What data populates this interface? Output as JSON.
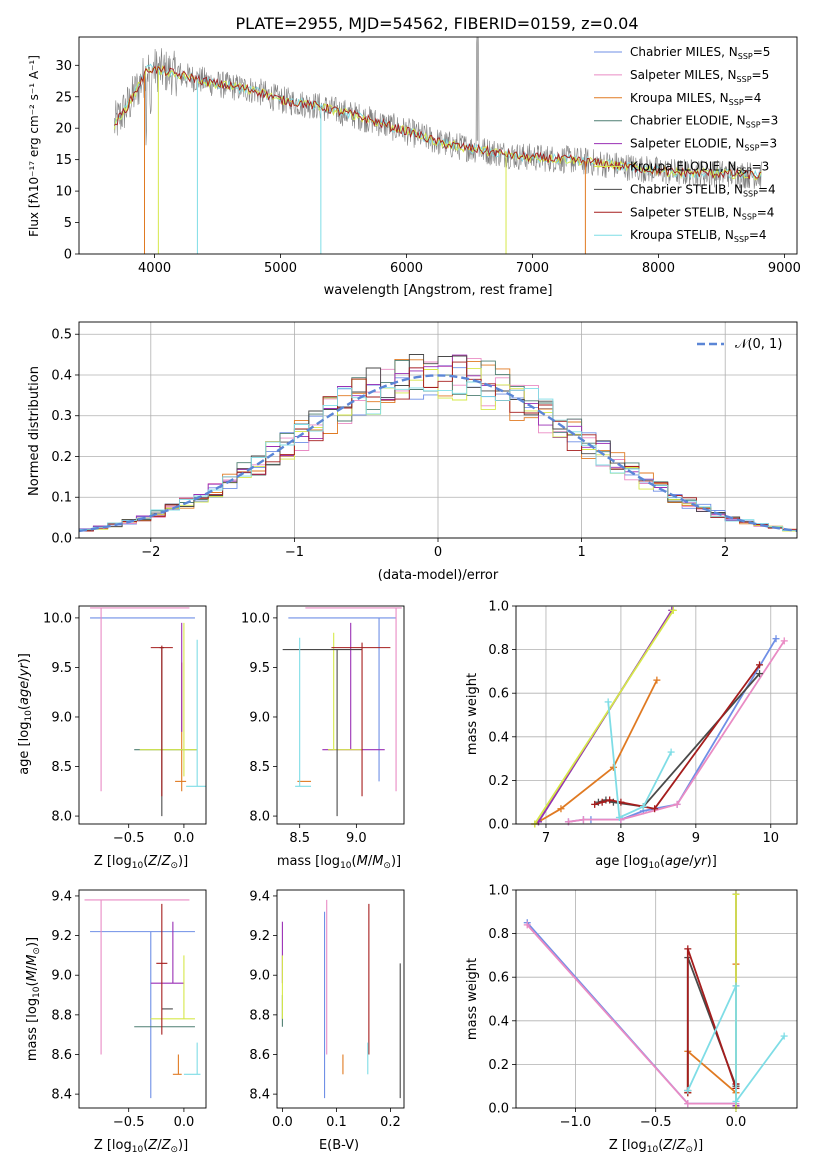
{
  "figure_title": "PLATE=2955, MJD=54562, FIBERID=0159, z=0.04",
  "colors": {
    "c1": "#6f8fe6",
    "c2": "#e98bc4",
    "c3": "#e07a22",
    "c4": "#4f7f72",
    "c5": "#9a2fb5",
    "c6": "#d6e84a",
    "c7": "#4a4a4a",
    "c8": "#a51d1d",
    "c9": "#7fdde6",
    "gauss": "#5b86d6",
    "data": "#808080"
  },
  "legend_spectrum": [
    {
      "model": "Chabrier MILES",
      "n": "5",
      "color": "#6f8fe6"
    },
    {
      "model": "Salpeter MILES",
      "n": "5",
      "color": "#e98bc4"
    },
    {
      "model": "Kroupa MILES",
      "n": "4",
      "color": "#e07a22"
    },
    {
      "model": "Chabrier ELODIE",
      "n": "3",
      "color": "#4f7f72"
    },
    {
      "model": "Salpeter ELODIE",
      "n": "3",
      "color": "#9a2fb5"
    },
    {
      "model": "Kroupa ELODIE",
      "n": "3",
      "color": "#d6e84a"
    },
    {
      "model": "Chabrier STELIB",
      "n": "4",
      "color": "#4a4a4a"
    },
    {
      "model": "Salpeter STELIB",
      "n": "4",
      "color": "#a51d1d"
    },
    {
      "model": "Kroupa STELIB",
      "n": "4",
      "color": "#7fdde6"
    }
  ],
  "legend_sub": "SSP",
  "legend_hist": "𝒩(0, 1)",
  "chart_data": [
    {
      "panel": "spectrum",
      "type": "line",
      "xlabel": "wavelength [Angstrom, rest frame]",
      "ylabel": "Flux [fλ10⁻¹⁷ erg cm⁻² s⁻¹ A⁻¹]",
      "xlim": [
        3400,
        9100
      ],
      "ylim": [
        0,
        34.5
      ],
      "xticks": [
        4000,
        5000,
        6000,
        7000,
        8000,
        9000
      ],
      "yticks": [
        0,
        5,
        10,
        15,
        20,
        25,
        30
      ],
      "grid": false,
      "legend": "top-right",
      "model_continuum": [
        [
          3680,
          20.5
        ],
        [
          3800,
          24
        ],
        [
          3950,
          29.5
        ],
        [
          4100,
          29
        ],
        [
          4300,
          28
        ],
        [
          4500,
          27
        ],
        [
          4800,
          26
        ],
        [
          5000,
          24.5
        ],
        [
          5300,
          23.5
        ],
        [
          5600,
          22
        ],
        [
          6000,
          19.5
        ],
        [
          6300,
          17.5
        ],
        [
          6600,
          16.5
        ],
        [
          6900,
          15.5
        ],
        [
          7300,
          15
        ],
        [
          7700,
          14
        ],
        [
          8100,
          13
        ],
        [
          8500,
          12.8
        ],
        [
          8800,
          12.5
        ]
      ]
    },
    {
      "panel": "residuals",
      "type": "histogram",
      "xlabel": "(data-model)/error",
      "ylabel": "Normed distribution",
      "xlim": [
        -2.5,
        2.5
      ],
      "ylim": [
        0,
        0.53
      ],
      "xticks": [
        -2,
        -1,
        0,
        1,
        2
      ],
      "xtick_labels": [
        "−2",
        "−1",
        "0",
        "1",
        "2"
      ],
      "yticks": [
        0,
        0.1,
        0.2,
        0.3,
        0.4,
        0.5
      ],
      "grid": true,
      "legend": "top-right",
      "bin_width": 0.1
    },
    {
      "panel": "age-vs-Z",
      "type": "scatter",
      "xlabel": "Z [log10(Z/Z☉)]",
      "ylabel": "age  [log10(age/yr)]",
      "xlim": [
        -0.95,
        0.2
      ],
      "ylim": [
        7.92,
        10.12
      ],
      "xticks": [
        -0.5,
        0.0
      ],
      "yticks": [
        8.0,
        8.5,
        9.0,
        9.5,
        10.0
      ],
      "grid": false,
      "bars": [
        {
          "c": 0,
          "x": -0.3,
          "y": 10.0,
          "x0": -0.85,
          "x1": 0.1,
          "y0": 10.0,
          "y1": 10.0
        },
        {
          "c": 1,
          "x": -0.75,
          "y": 10.1,
          "x0": -0.85,
          "x1": 0.05,
          "y0": 8.25,
          "y1": 10.1
        },
        {
          "c": 2,
          "x": -0.02,
          "y": 8.35,
          "x0": -0.08,
          "x1": 0.02,
          "y0": 8.25,
          "y1": 9.55
        },
        {
          "c": 3,
          "x": -0.2,
          "y": 8.67,
          "x0": -0.45,
          "x1": 0.12,
          "y0": 8.67,
          "y1": 8.67
        },
        {
          "c": 4,
          "x": -0.02,
          "y": 9.2,
          "x0": -0.02,
          "x1": -0.02,
          "y0": 8.85,
          "y1": 9.95
        },
        {
          "c": 5,
          "x": 0.0,
          "y": 8.67,
          "x0": -0.4,
          "x1": 0.12,
          "y0": 8.4,
          "y1": 9.95
        },
        {
          "c": 6,
          "x": -0.2,
          "y": 9.7,
          "x0": -0.22,
          "x1": -0.18,
          "y0": 8.0,
          "y1": 9.7
        },
        {
          "c": 7,
          "x": -0.2,
          "y": 9.7,
          "x0": -0.3,
          "x1": -0.1,
          "y0": 8.2,
          "y1": 9.72
        },
        {
          "c": 8,
          "x": 0.12,
          "y": 8.3,
          "x0": 0.02,
          "x1": 0.2,
          "y0": 8.3,
          "y1": 9.78
        }
      ]
    },
    {
      "panel": "age-vs-mass",
      "type": "scatter",
      "xlabel": "mass [log10(M/M☉)]",
      "ylabel": "",
      "xlim": [
        8.3,
        9.42
      ],
      "ylim": [
        7.92,
        10.12
      ],
      "xticks": [
        8.5,
        9.0
      ],
      "yticks": [
        8.0,
        8.5,
        9.0,
        9.5,
        10.0
      ],
      "grid": false,
      "bars": [
        {
          "c": 0,
          "x": 9.2,
          "y": 10.0,
          "x0": 8.4,
          "x1": 9.35,
          "y0": 8.35,
          "y1": 10.0
        },
        {
          "c": 1,
          "x": 9.35,
          "y": 10.1,
          "x0": 8.55,
          "x1": 9.4,
          "y0": 8.25,
          "y1": 10.1
        },
        {
          "c": 2,
          "x": 8.5,
          "y": 8.35,
          "x0": 8.48,
          "x1": 8.6,
          "y0": 8.35,
          "y1": 8.35
        },
        {
          "c": 3,
          "x": 8.75,
          "y": 8.67,
          "x0": 8.75,
          "x1": 8.8,
          "y0": 8.67,
          "y1": 8.67
        },
        {
          "c": 4,
          "x": 8.95,
          "y": 8.67,
          "x0": 8.7,
          "x1": 9.25,
          "y0": 8.67,
          "y1": 9.95
        },
        {
          "c": 5,
          "x": 8.8,
          "y": 8.67,
          "x0": 8.75,
          "x1": 9.05,
          "y0": 8.67,
          "y1": 9.85
        },
        {
          "c": 6,
          "x": 8.83,
          "y": 9.68,
          "x0": 8.35,
          "x1": 9.05,
          "y0": 8.0,
          "y1": 9.68
        },
        {
          "c": 7,
          "x": 9.05,
          "y": 9.7,
          "x0": 8.78,
          "x1": 9.3,
          "y0": 8.2,
          "y1": 9.75
        },
        {
          "c": 8,
          "x": 8.5,
          "y": 8.3,
          "x0": 8.46,
          "x1": 8.6,
          "y0": 8.3,
          "y1": 9.8
        }
      ]
    },
    {
      "panel": "weight-vs-age",
      "type": "line",
      "xlabel": "age  [log10(age/yr)]",
      "ylabel": "mass weight",
      "xlim": [
        6.6,
        10.35
      ],
      "ylim": [
        0,
        1.0
      ],
      "xticks": [
        7,
        8,
        9,
        10
      ],
      "yticks": [
        0.0,
        0.2,
        0.4,
        0.6,
        0.8,
        1.0
      ],
      "grid": true,
      "series": [
        {
          "c": 0,
          "x": [
            7.3,
            7.5,
            7.6,
            8.0,
            8.3,
            8.75,
            10.07
          ],
          "y": [
            0.01,
            0.02,
            0.02,
            0.02,
            0.06,
            0.09,
            0.85
          ]
        },
        {
          "c": 1,
          "x": [
            7.3,
            7.5,
            8.0,
            8.75,
            10.18
          ],
          "y": [
            0.01,
            0.02,
            0.02,
            0.09,
            0.84
          ]
        },
        {
          "c": 2,
          "x": [
            6.85,
            7.2,
            7.9,
            8.48
          ],
          "y": [
            0.0,
            0.07,
            0.26,
            0.66
          ]
        },
        {
          "c": 3,
          "x": [
            6.9,
            8.68
          ],
          "y": [
            0.01,
            0.98
          ]
        },
        {
          "c": 4,
          "x": [
            6.9,
            8.68
          ],
          "y": [
            0.01,
            0.98
          ]
        },
        {
          "c": 5,
          "x": [
            6.85,
            8.7
          ],
          "y": [
            0.0,
            0.98
          ]
        },
        {
          "c": 6,
          "x": [
            7.7,
            7.8,
            7.9,
            8.3,
            9.85
          ],
          "y": [
            0.1,
            0.11,
            0.1,
            0.08,
            0.69
          ]
        },
        {
          "c": 7,
          "x": [
            7.65,
            7.75,
            7.85,
            8.0,
            8.45,
            9.85
          ],
          "y": [
            0.09,
            0.1,
            0.11,
            0.1,
            0.07,
            0.73
          ]
        },
        {
          "c": 8,
          "x": [
            7.83,
            7.98,
            8.3,
            8.67
          ],
          "y": [
            0.56,
            0.03,
            0.08,
            0.33
          ]
        }
      ]
    },
    {
      "panel": "mass-vs-Z",
      "type": "scatter",
      "xlabel": "Z [log10(Z/Z☉)]",
      "ylabel": "mass [log10(M/M☉)]",
      "xlim": [
        -0.95,
        0.2
      ],
      "ylim": [
        8.33,
        9.43
      ],
      "xticks": [
        -0.5,
        0.0
      ],
      "yticks": [
        8.4,
        8.6,
        8.8,
        9.0,
        9.2,
        9.4
      ],
      "grid": false,
      "bars": [
        {
          "c": 0,
          "x": -0.3,
          "y": 9.22,
          "x0": -0.85,
          "x1": 0.1,
          "y0": 8.38,
          "y1": 9.22
        },
        {
          "c": 1,
          "x": -0.75,
          "y": 9.38,
          "x0": -0.9,
          "x1": 0.05,
          "y0": 8.6,
          "y1": 9.38
        },
        {
          "c": 2,
          "x": -0.05,
          "y": 8.5,
          "x0": -0.1,
          "x1": -0.02,
          "y0": 8.5,
          "y1": 8.6
        },
        {
          "c": 3,
          "x": -0.2,
          "y": 8.74,
          "x0": -0.45,
          "x1": 0.1,
          "y0": 8.74,
          "y1": 8.74
        },
        {
          "c": 4,
          "x": -0.1,
          "y": 8.96,
          "x0": -0.3,
          "x1": 0.0,
          "y0": 8.96,
          "y1": 9.27
        },
        {
          "c": 5,
          "x": 0.0,
          "y": 8.78,
          "x0": -0.3,
          "x1": 0.1,
          "y0": 8.78,
          "y1": 9.1
        },
        {
          "c": 6,
          "x": -0.15,
          "y": 8.83,
          "x0": -0.2,
          "x1": -0.1,
          "y0": 8.83,
          "y1": 8.83
        },
        {
          "c": 7,
          "x": -0.2,
          "y": 9.06,
          "x0": -0.25,
          "x1": -0.15,
          "y0": 8.7,
          "y1": 9.36
        },
        {
          "c": 8,
          "x": 0.12,
          "y": 8.5,
          "x0": 0.0,
          "x1": 0.15,
          "y0": 8.5,
          "y1": 8.66
        }
      ]
    },
    {
      "panel": "mass-vs-EBV",
      "type": "scatter",
      "xlabel": "E(B-V)",
      "ylabel": "",
      "xlim": [
        -0.01,
        0.225
      ],
      "ylim": [
        8.33,
        9.43
      ],
      "xticks": [
        0.0,
        0.1,
        0.2
      ],
      "yticks": [
        8.4,
        8.6,
        8.8,
        9.0,
        9.2,
        9.4
      ],
      "grid": false,
      "bars": [
        {
          "c": 0,
          "x": 0.078,
          "y": 9.32,
          "x0": 0.078,
          "x1": 0.078,
          "y0": 8.38,
          "y1": 9.32
        },
        {
          "c": 1,
          "x": 0.082,
          "y": 9.38,
          "x0": 0.082,
          "x1": 0.082,
          "y0": 8.6,
          "y1": 9.38
        },
        {
          "c": 2,
          "x": 0.112,
          "y": 8.6,
          "x0": 0.112,
          "x1": 0.112,
          "y0": 8.5,
          "y1": 8.6
        },
        {
          "c": 3,
          "x": 0.0,
          "y": 8.9,
          "x0": 0.0,
          "x1": 0.0,
          "y0": 8.74,
          "y1": 8.9
        },
        {
          "c": 4,
          "x": 0.0,
          "y": 9.27,
          "x0": 0.0,
          "x1": 0.0,
          "y0": 8.96,
          "y1": 9.27
        },
        {
          "c": 5,
          "x": 0.0,
          "y": 9.1,
          "x0": 0.0,
          "x1": 0.0,
          "y0": 8.78,
          "y1": 9.1
        },
        {
          "c": 6,
          "x": 0.218,
          "y": 9.06,
          "x0": 0.218,
          "x1": 0.218,
          "y0": 8.38,
          "y1": 9.06
        },
        {
          "c": 7,
          "x": 0.16,
          "y": 9.36,
          "x0": 0.16,
          "x1": 0.16,
          "y0": 8.6,
          "y1": 9.36
        },
        {
          "c": 8,
          "x": 0.158,
          "y": 8.66,
          "x0": 0.158,
          "x1": 0.158,
          "y0": 8.5,
          "y1": 8.66
        }
      ]
    },
    {
      "panel": "weight-vs-Z",
      "type": "line",
      "xlabel": "Z [log10(Z/Z☉)]",
      "ylabel": "mass weight",
      "xlim": [
        -1.37,
        0.38
      ],
      "ylim": [
        0,
        1.0
      ],
      "xticks": [
        -1.0,
        -0.5,
        0.0
      ],
      "xtick_labels": [
        "−1.0",
        "−0.5",
        "0.0"
      ],
      "yticks": [
        0.0,
        0.2,
        0.4,
        0.6,
        0.8,
        1.0
      ],
      "grid": true,
      "series": [
        {
          "c": 0,
          "x": [
            -1.3,
            -0.3,
            0.0
          ],
          "y": [
            0.85,
            0.02,
            0.02
          ]
        },
        {
          "c": 1,
          "x": [
            -1.3,
            -0.3,
            0.0
          ],
          "y": [
            0.84,
            0.02,
            0.02
          ]
        },
        {
          "c": 2,
          "x": [
            -0.3,
            -0.3,
            0.0,
            0.0
          ],
          "y": [
            0.07,
            0.26,
            0.07,
            0.66
          ]
        },
        {
          "c": 3,
          "x": [
            0.0,
            0.0
          ],
          "y": [
            0.01,
            0.98
          ]
        },
        {
          "c": 4,
          "x": [
            0.0,
            0.0
          ],
          "y": [
            0.01,
            0.98
          ]
        },
        {
          "c": 5,
          "x": [
            0.0,
            0.0
          ],
          "y": [
            0.0,
            0.98
          ]
        },
        {
          "c": 6,
          "x": [
            -0.3,
            -0.3,
            0.0,
            0.0
          ],
          "y": [
            0.08,
            0.69,
            0.1,
            0.11
          ]
        },
        {
          "c": 7,
          "x": [
            -0.3,
            -0.3,
            0.0,
            0.0
          ],
          "y": [
            0.07,
            0.73,
            0.09,
            0.11
          ]
        },
        {
          "c": 8,
          "x": [
            -0.3,
            0.0,
            0.0,
            0.3
          ],
          "y": [
            0.08,
            0.56,
            0.03,
            0.33
          ]
        }
      ]
    }
  ]
}
